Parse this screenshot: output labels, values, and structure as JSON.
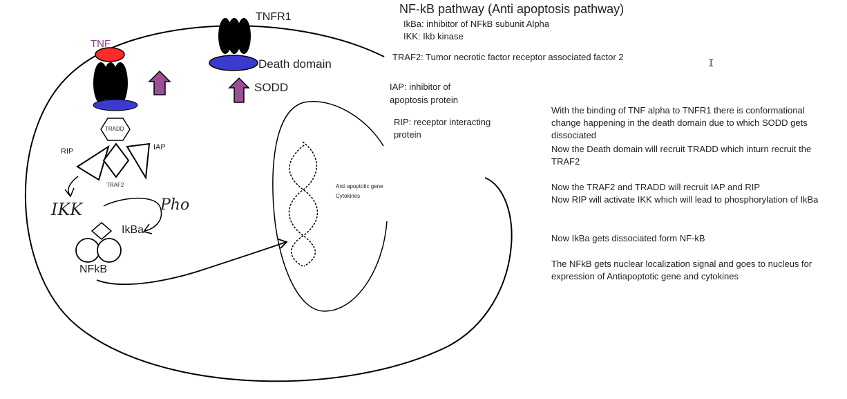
{
  "title": "NF-kB pathway (Anti apoptosis pathway)",
  "definitions": [
    "IkBa: inhibitor of NFkB subunit Alpha",
    "IKK: Ikb kinase",
    "TRAF2: Tumor necrotic factor receptor associated factor 2",
    "IAP: inhibitor of",
    "apoptosis protein",
    "RIP: receptor interacting",
    "protein"
  ],
  "labels": {
    "tnf": "TNF",
    "tnfr1": "TNFR1",
    "death_domain": "Death domain",
    "sodd": "SODD",
    "tradd": "TRADD",
    "rip": "RIP",
    "iap": "IAP",
    "traf2": "TRAF2",
    "ikk_handwritten": "IKK",
    "pho_handwritten": "Pho",
    "ikba": "IkBa",
    "nfkb": "NFkB",
    "nucleus_line1": "Anti apoptotic gene",
    "nucleus_line2": "Cytokines"
  },
  "explanation": [
    "With the binding of TNF alpha to TNFR1 there is conformational change happening in the death domain due to which SODD gets dissociated",
    "Now the Death domain will recruit TRADD which inturn recruit the TRAF2",
    "Now the TRAF2 and TRADD will recruit IAP and RIP",
    "Now RIP will activate IKK which will lead to  phosphorylation of IkBa",
    "Now IkBa gets dissociated form NF-kB",
    "The NFkB gets nuclear localization signal and goes to nucleus for expression of Antiapoptotic gene and cytokines"
  ],
  "colors": {
    "tnf_red": "#ff2a2a",
    "receptor_black": "#000000",
    "domain_blue": "#3a3acc",
    "arrow_purple": "#9b4f96",
    "tnf_label_purple": "#8b3a8b"
  }
}
